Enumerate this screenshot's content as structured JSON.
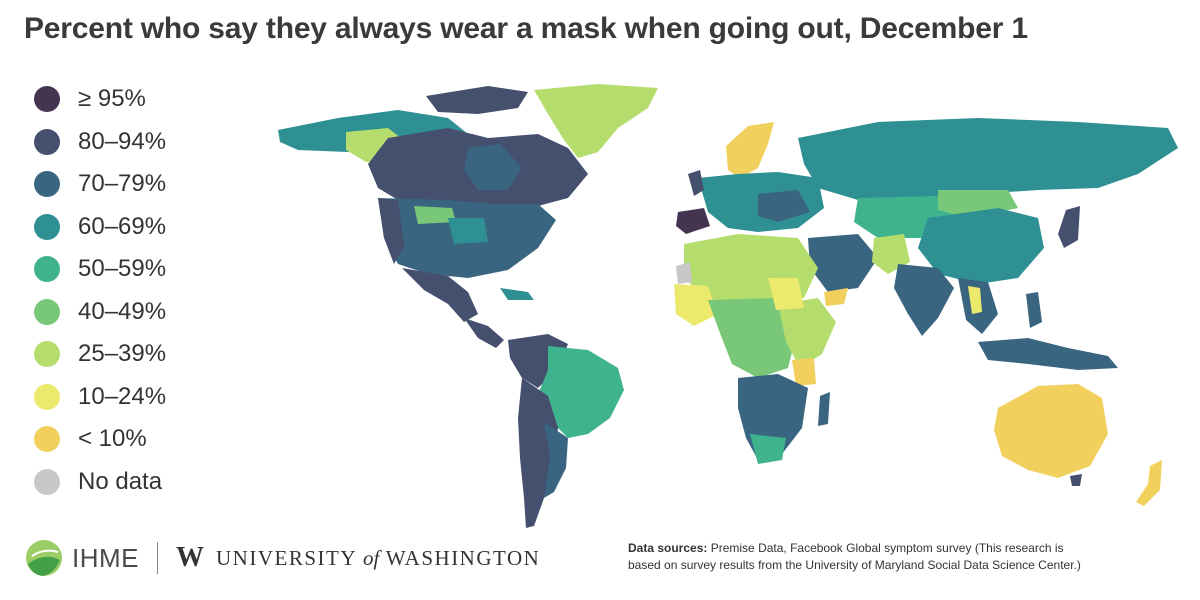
{
  "title": "Percent who say they always wear a mask when going out, December 1",
  "legend": [
    {
      "label": "≥ 95%",
      "color": "#45344f"
    },
    {
      "label": "80–94%",
      "color": "#454f6e"
    },
    {
      "label": "70–79%",
      "color": "#3a6580"
    },
    {
      "label": "60–69%",
      "color": "#2e9093"
    },
    {
      "label": "50–59%",
      "color": "#3fb28e"
    },
    {
      "label": "40–49%",
      "color": "#79c87a"
    },
    {
      "label": "25–39%",
      "color": "#b5dd6e"
    },
    {
      "label": "10–24%",
      "color": "#ecea6c"
    },
    {
      "label": "< 10%",
      "color": "#f2d05e"
    },
    {
      "label": "No data",
      "color": "#c8c8c8"
    }
  ],
  "map_regions": {
    "north_america": "70–79%",
    "usa_west": "80–94%",
    "usa_central": "70–79%",
    "canada_north": "25–39%",
    "mexico_central_america": "80–94%",
    "greenland": "25–39%",
    "south_america_west": "80–94%",
    "brazil": "50–59%",
    "spain": "≥ 95%",
    "europe": "60–69%",
    "scandinavia": "< 10%",
    "russia": "60–69%",
    "north_africa": "25–39%",
    "western_sahara": "No data",
    "central_africa": "40–49%",
    "southern_africa": "70–79%",
    "middle_east": "70–79%",
    "yemen": "< 10%",
    "central_asia": "50–59%",
    "china": "60–69%",
    "india": "70–79%",
    "southeast_asia": "70–79%",
    "japan": "80–94%",
    "indonesia": "70–79%",
    "australia": "< 10%",
    "new_zealand": "< 10%",
    "tanzania": "< 10%"
  },
  "footer": {
    "ihme": "IHME",
    "uw_letter": "W",
    "uw_university": "UNIVERSITY",
    "uw_of": "of",
    "uw_washington": "WASHINGTON"
  },
  "sources": {
    "label": "Data sources:",
    "text": "Premise Data, Facebook Global symptom survey (This research is based on survey results from the University of Maryland Social Data Science Center.)"
  }
}
